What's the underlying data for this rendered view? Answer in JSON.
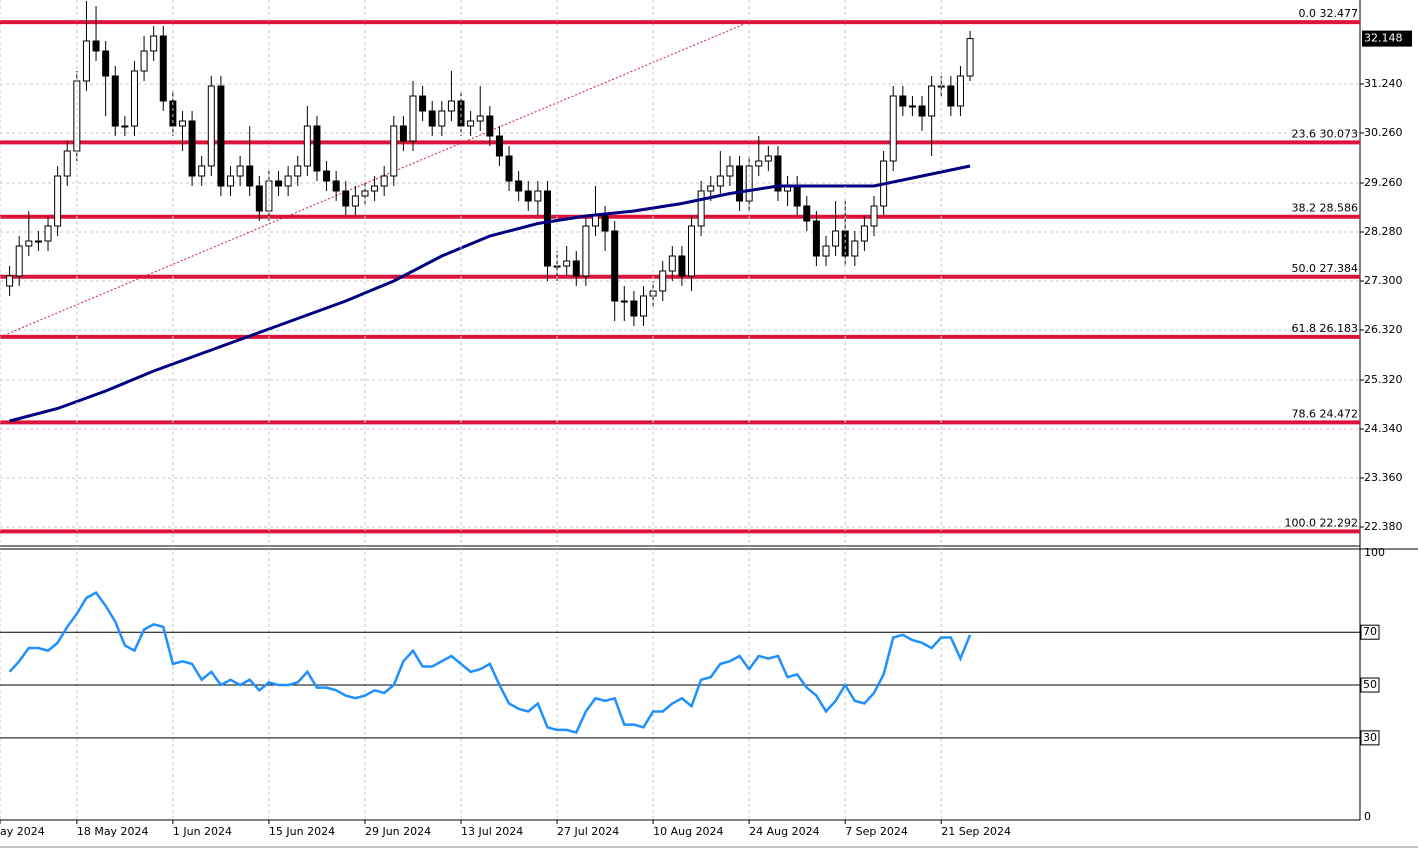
{
  "chart_data": [
    {
      "type": "candlestick",
      "open": [
        27.2,
        27.4,
        28.0,
        28.1,
        28.1,
        28.4,
        29.4,
        29.9,
        31.3,
        32.1,
        31.9,
        31.4,
        30.4,
        30.4,
        31.5,
        31.9,
        32.2,
        30.9,
        30.4,
        30.5,
        29.4,
        29.6,
        31.2,
        29.2,
        29.4,
        29.6,
        29.2,
        28.7,
        29.3,
        29.2,
        29.4,
        29.6,
        30.4,
        29.5,
        29.3,
        29.1,
        28.8,
        29.0,
        29.1,
        29.2,
        29.4,
        30.4,
        30.1,
        31.0,
        30.7,
        30.4,
        30.7,
        30.9,
        30.4,
        30.5,
        30.6,
        30.2,
        29.8,
        29.3,
        29.1,
        28.9,
        29.1,
        27.6,
        27.6,
        27.7,
        27.4,
        28.4,
        28.6,
        28.3,
        26.9,
        26.9,
        26.6,
        27.0,
        27.1,
        27.5,
        27.8,
        27.4,
        28.4,
        29.1,
        29.2,
        29.4,
        29.6,
        28.9,
        29.6,
        29.7,
        29.8,
        29.1,
        29.2,
        28.8,
        28.5,
        27.8,
        28.0,
        28.3,
        27.8,
        28.1,
        28.4,
        28.8,
        29.7,
        31.0,
        30.8,
        30.8,
        30.6,
        31.2,
        31.2,
        30.8,
        31.4
      ],
      "high": [
        27.6,
        28.2,
        28.7,
        28.3,
        28.6,
        29.6,
        30.1,
        31.5,
        32.9,
        32.8,
        32.1,
        31.6,
        30.6,
        31.7,
        32.2,
        32.4,
        32.4,
        31.1,
        30.7,
        30.7,
        29.8,
        31.4,
        31.4,
        29.6,
        29.8,
        30.4,
        29.4,
        29.5,
        29.5,
        29.6,
        29.8,
        30.8,
        30.6,
        29.7,
        29.5,
        29.3,
        29.2,
        29.3,
        29.4,
        29.6,
        30.6,
        30.6,
        31.3,
        31.2,
        30.9,
        30.9,
        31.5,
        31.1,
        30.7,
        31.2,
        30.8,
        30.4,
        30.0,
        29.5,
        29.3,
        29.3,
        29.3,
        27.9,
        28.0,
        27.9,
        28.6,
        29.2,
        28.8,
        28.5,
        27.2,
        27.1,
        27.2,
        27.3,
        27.7,
        28.0,
        28.0,
        28.6,
        29.3,
        29.4,
        29.9,
        29.8,
        29.8,
        29.8,
        30.2,
        30.0,
        30.0,
        29.4,
        29.4,
        29.0,
        28.7,
        28.2,
        28.9,
        28.9,
        28.3,
        28.6,
        29.0,
        29.9,
        31.2,
        31.2,
        31.0,
        31.0,
        31.4,
        31.4,
        31.4,
        31.6,
        32.3
      ],
      "low": [
        27.0,
        27.2,
        27.8,
        27.9,
        27.9,
        28.2,
        29.2,
        29.7,
        31.1,
        31.7,
        30.6,
        30.2,
        30.2,
        30.2,
        31.3,
        31.7,
        30.7,
        30.2,
        29.9,
        29.2,
        29.2,
        29.4,
        29.0,
        29.0,
        29.2,
        29.0,
        28.5,
        28.5,
        29.0,
        29.0,
        29.2,
        29.4,
        29.3,
        29.1,
        28.9,
        28.6,
        28.6,
        28.8,
        28.9,
        29.0,
        29.2,
        29.9,
        29.9,
        30.5,
        30.2,
        30.2,
        30.5,
        30.2,
        30.2,
        30.3,
        30.0,
        29.6,
        29.1,
        28.9,
        28.7,
        28.6,
        27.3,
        27.3,
        27.4,
        27.2,
        27.2,
        28.2,
        27.9,
        26.5,
        26.5,
        26.4,
        26.4,
        26.8,
        26.9,
        27.3,
        27.2,
        27.1,
        28.2,
        28.9,
        29.0,
        29.2,
        28.7,
        28.7,
        29.4,
        29.5,
        28.9,
        28.8,
        28.6,
        28.3,
        27.6,
        27.6,
        27.8,
        27.6,
        27.6,
        27.9,
        28.2,
        28.6,
        29.5,
        30.6,
        30.6,
        30.3,
        29.8,
        31.0,
        30.6,
        30.6,
        31.3
      ],
      "close": [
        27.4,
        28.0,
        28.1,
        28.1,
        28.4,
        29.4,
        29.9,
        31.3,
        32.1,
        31.9,
        31.4,
        30.4,
        30.4,
        31.5,
        31.9,
        32.2,
        30.9,
        30.4,
        30.5,
        29.4,
        29.6,
        31.2,
        29.2,
        29.4,
        29.6,
        29.2,
        28.7,
        29.3,
        29.2,
        29.4,
        29.6,
        30.4,
        29.5,
        29.3,
        29.1,
        28.8,
        29.0,
        29.1,
        29.2,
        29.4,
        30.4,
        30.1,
        31.0,
        30.7,
        30.4,
        30.7,
        30.9,
        30.4,
        30.5,
        30.6,
        30.2,
        29.8,
        29.3,
        29.1,
        28.9,
        29.1,
        27.6,
        27.6,
        27.7,
        27.4,
        28.4,
        28.6,
        28.3,
        26.9,
        26.9,
        26.6,
        27.0,
        27.1,
        27.5,
        27.8,
        27.4,
        28.4,
        29.1,
        29.2,
        29.4,
        29.6,
        28.9,
        29.6,
        29.7,
        29.8,
        29.1,
        29.2,
        28.8,
        28.5,
        27.8,
        28.0,
        28.3,
        27.8,
        28.1,
        28.4,
        28.8,
        29.7,
        31.0,
        30.8,
        30.8,
        30.6,
        31.2,
        31.2,
        30.8,
        31.4,
        32.148
      ],
      "last_price": 32.148,
      "up_color": "#ffffff",
      "down_color": "#000000",
      "xlim": [
        -1,
        140.6
      ],
      "ylim": [
        22.02,
        32.92
      ],
      "yticks": [
        {
          "value": 31.24,
          "label": "31.240"
        },
        {
          "value": 30.26,
          "label": "30.260"
        },
        {
          "value": 29.26,
          "label": "29.260"
        },
        {
          "value": 28.28,
          "label": "28.280"
        },
        {
          "value": 27.3,
          "label": "27.300"
        },
        {
          "value": 26.32,
          "label": "26.320"
        },
        {
          "value": 25.32,
          "label": "25.320"
        },
        {
          "value": 24.34,
          "label": "24.340"
        },
        {
          "value": 23.36,
          "label": "23.360"
        },
        {
          "value": 22.38,
          "label": "22.380"
        }
      ],
      "grid": true,
      "fib_color": "#dc143c",
      "fib_levels": [
        {
          "value": 32.477,
          "label": "0.0 32.477"
        },
        {
          "value": 30.073,
          "label": "23.6 30.073"
        },
        {
          "value": 28.586,
          "label": "38.2 28.586"
        },
        {
          "value": 27.384,
          "label": "50.0 27.384"
        },
        {
          "value": 26.183,
          "label": "61.8 26.183"
        },
        {
          "value": 24.472,
          "label": "78.6 24.472"
        },
        {
          "value": 22.292,
          "label": "100.0 22.292"
        }
      ],
      "ma": {
        "color": "#000080",
        "x": [
          0,
          5,
          10,
          15,
          20,
          25,
          30,
          35,
          40,
          45,
          50,
          55,
          60,
          65,
          70,
          75,
          80,
          85,
          90,
          95,
          100
        ],
        "values": [
          24.5,
          24.75,
          25.1,
          25.5,
          25.85,
          26.2,
          26.55,
          26.9,
          27.3,
          27.8,
          28.2,
          28.45,
          28.6,
          28.7,
          28.85,
          29.05,
          29.2,
          29.2,
          29.2,
          29.4,
          29.6
        ]
      },
      "trendline": {
        "color": "#dc143c",
        "x": [
          -1,
          77
        ],
        "values": [
          26.18,
          32.48
        ]
      }
    },
    {
      "type": "line",
      "values": [
        55,
        59,
        64,
        64,
        63,
        66,
        72,
        77,
        83,
        85,
        80,
        74,
        65,
        63,
        71,
        73,
        72,
        58,
        59,
        58,
        52,
        55,
        50,
        52,
        50,
        52,
        48,
        51,
        50,
        50,
        51,
        55,
        49,
        49,
        48,
        46,
        45,
        46,
        48,
        47,
        50,
        59,
        63,
        57,
        57,
        59,
        61,
        58,
        55,
        56,
        58,
        50,
        43,
        41,
        40,
        43,
        34,
        33,
        33,
        32,
        40,
        45,
        44,
        45,
        35,
        35,
        34,
        40,
        40,
        43,
        45,
        42,
        52,
        53,
        58,
        59,
        61,
        56,
        61,
        60,
        61,
        53,
        54,
        49,
        46,
        40,
        44,
        50,
        44,
        43,
        47,
        54,
        68,
        69,
        67,
        66,
        64,
        68,
        68,
        60,
        69
      ],
      "color": "#1e90ff",
      "xlim": [
        -1,
        140.6
      ],
      "ylim": [
        -1.1,
        101.5
      ],
      "yticks": [
        0,
        100
      ],
      "levels": [
        70,
        50,
        30
      ],
      "xticks": [
        {
          "value": -1,
          "label": "ay 2024"
        },
        {
          "value": 7,
          "label": "18 May 2024"
        },
        {
          "value": 17,
          "label": "1 Jun 2024"
        },
        {
          "value": 27,
          "label": "15 Jun 2024"
        },
        {
          "value": 37,
          "label": "29 Jun 2024"
        },
        {
          "value": 47,
          "label": "13 Jul 2024"
        },
        {
          "value": 57,
          "label": "27 Jul 2024"
        },
        {
          "value": 67,
          "label": "10 Aug 2024"
        },
        {
          "value": 77,
          "label": "24 Aug 2024"
        },
        {
          "value": 87,
          "label": "7 Sep 2024"
        },
        {
          "value": 97,
          "label": "21 Sep 2024"
        }
      ],
      "grid": true
    }
  ]
}
